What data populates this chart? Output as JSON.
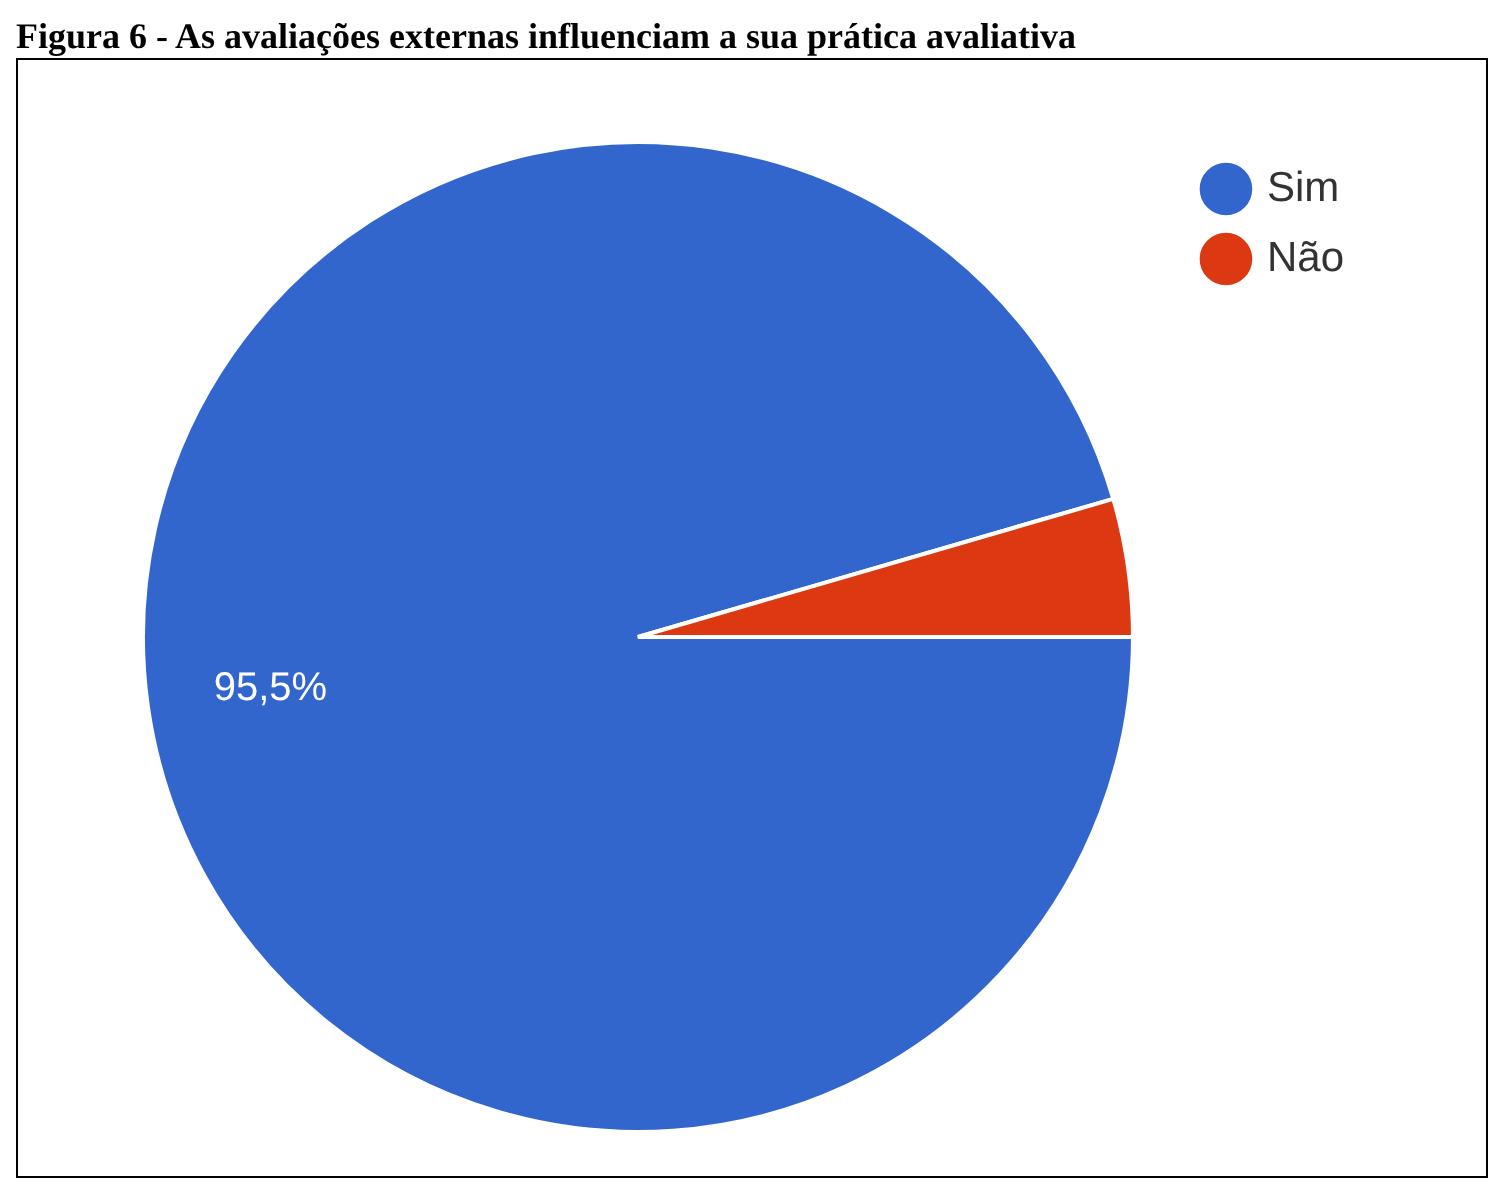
{
  "chart_data": {
    "type": "pie",
    "title": "Figura 6 - As avaliações externas influenciam a sua prática avaliativa",
    "categories": [
      "Sim",
      "Não"
    ],
    "values": [
      95.5,
      4.5
    ],
    "colors": [
      "#3366cc",
      "#dc3912"
    ],
    "value_labels": [
      "95,5%",
      null
    ],
    "legend": "top right"
  }
}
